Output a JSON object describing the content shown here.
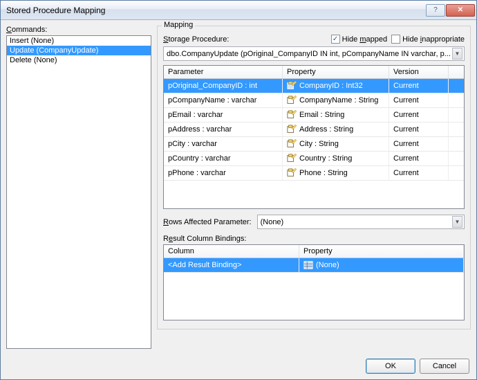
{
  "title": "Stored Procedure Mapping",
  "commands_label": "Commands:",
  "commands": [
    {
      "label": "Insert (None)",
      "selected": false
    },
    {
      "label": "Update (CompanyUpdate)",
      "selected": true
    },
    {
      "label": "Delete (None)",
      "selected": false
    }
  ],
  "mapping": {
    "group_title": "Mapping",
    "storage_label": "Storage Procedure:",
    "hide_mapped": {
      "label": "Hide mapped",
      "checked": true,
      "underline_index": 5
    },
    "hide_inappropriate": {
      "label": "Hide inappropriate",
      "checked": false,
      "underline_index": 5
    },
    "procedure_combo": "dbo.CompanyUpdate (pOriginal_CompanyID IN int, pCompanyName IN varchar, p...",
    "grid": {
      "headers": {
        "parameter": "Parameter",
        "property": "Property",
        "version": "Version"
      },
      "rows": [
        {
          "param": "pOriginal_CompanyID : int",
          "prop": "CompanyID : Int32",
          "ver": "Current",
          "selected": true
        },
        {
          "param": "pCompanyName : varchar",
          "prop": "CompanyName : String",
          "ver": "Current",
          "selected": false
        },
        {
          "param": "pEmail : varchar",
          "prop": "Email : String",
          "ver": "Current",
          "selected": false
        },
        {
          "param": "pAddress : varchar",
          "prop": "Address : String",
          "ver": "Current",
          "selected": false
        },
        {
          "param": "pCity : varchar",
          "prop": "City : String",
          "ver": "Current",
          "selected": false
        },
        {
          "param": "pCountry : varchar",
          "prop": "Country : String",
          "ver": "Current",
          "selected": false
        },
        {
          "param": "pPhone : varchar",
          "prop": "Phone : String",
          "ver": "Current",
          "selected": false
        }
      ]
    },
    "rows_affected_label": "Rows Affected Parameter:",
    "rows_affected_value": "(None)",
    "result_bindings_label": "Result Column Bindings:",
    "bindings_grid": {
      "headers": {
        "column": "Column",
        "property": "Property"
      },
      "rows": [
        {
          "col": "<Add Result Binding>",
          "prop": "(None)",
          "selected": true
        }
      ]
    }
  },
  "buttons": {
    "ok": "OK",
    "cancel": "Cancel"
  },
  "colors": {
    "selection": "#3399ff",
    "border": "#828790",
    "window_bg": "#f0f0f0"
  }
}
